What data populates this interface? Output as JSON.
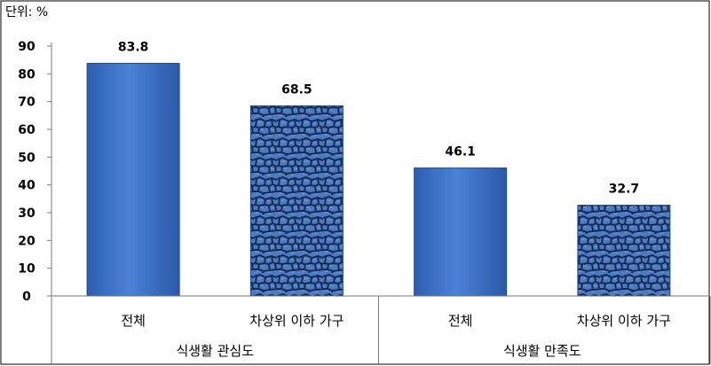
{
  "unit_label": "단위: %",
  "chart_data": {
    "type": "bar",
    "ylim": [
      0,
      90
    ],
    "yticks": [
      0,
      10,
      20,
      30,
      40,
      50,
      60,
      70,
      80,
      90
    ],
    "grid": false,
    "groups": [
      {
        "label": "식생활 관심도",
        "bars": [
          {
            "category": "전체",
            "value": 83.8,
            "value_label": "83.8",
            "style": "smooth"
          },
          {
            "category": "차상위 이하 가구",
            "value": 68.5,
            "value_label": "68.5",
            "style": "textured"
          }
        ]
      },
      {
        "label": "식생활 만족도",
        "bars": [
          {
            "category": "전체",
            "value": 46.1,
            "value_label": "46.1",
            "style": "smooth"
          },
          {
            "category": "차상위 이하 가구",
            "value": 32.7,
            "value_label": "32.7",
            "style": "textured"
          }
        ]
      }
    ],
    "colors": {
      "bar": "#3d72c8",
      "bar_dark": "#244a8c",
      "texture": "#16305f",
      "axis": "#7a7a7a"
    }
  }
}
